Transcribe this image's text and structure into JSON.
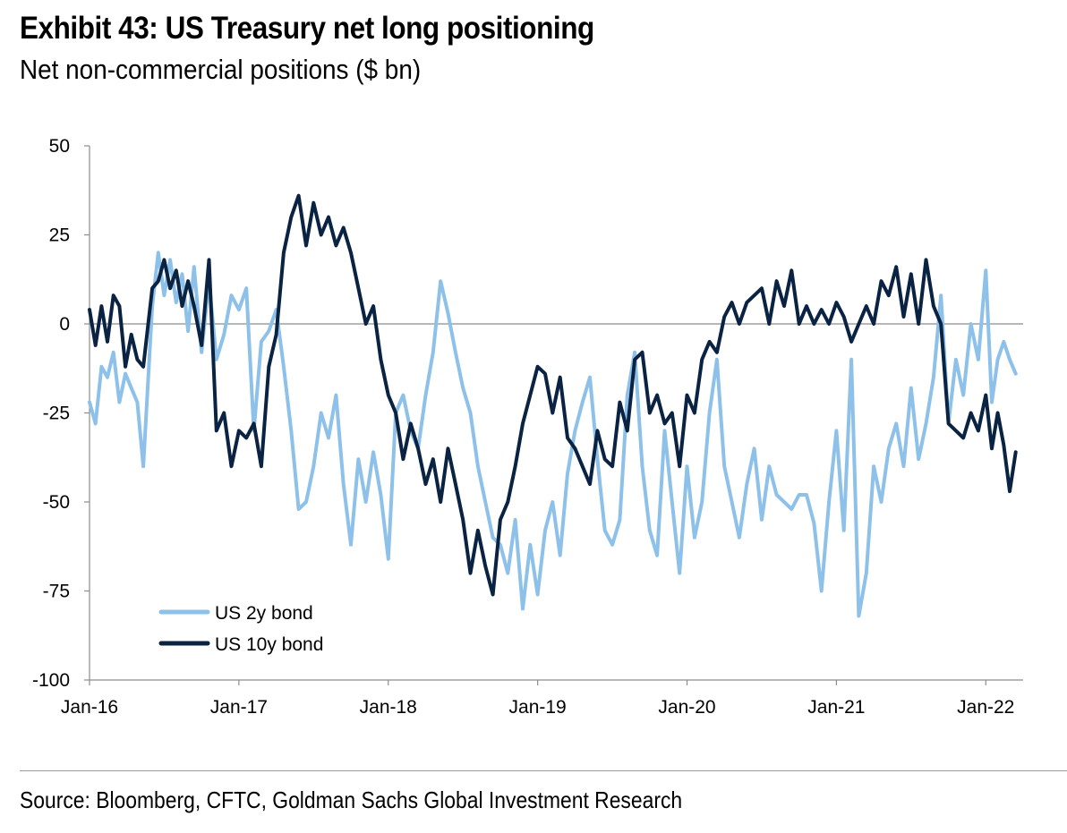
{
  "header": {
    "title": "Exhibit 43: US Treasury net long positioning",
    "subtitle": "Net non-commercial positions ($ bn)"
  },
  "footer": {
    "source": "Source: Bloomberg, CFTC, Goldman Sachs Global Investment Research"
  },
  "colors": {
    "us2y": "#8ec1e9",
    "us10y": "#0b2343",
    "axis": "#8c8c8c"
  },
  "chart_data": {
    "type": "line",
    "title": "Exhibit 43: US Treasury net long positioning",
    "ylabel": "Net non-commercial positions ($ bn)",
    "ylim": [
      -100,
      50
    ],
    "yticks": [
      50,
      25,
      0,
      -25,
      -50,
      -75,
      -100
    ],
    "ytick_labels": [
      "50",
      "25",
      "0",
      "-25",
      "-50",
      "-75",
      "-100"
    ],
    "xlim": [
      2016.0,
      2022.25
    ],
    "xticks": [
      2016,
      2017,
      2018,
      2019,
      2020,
      2021,
      2022
    ],
    "xtick_labels": [
      "Jan-16",
      "Jan-17",
      "Jan-18",
      "Jan-19",
      "Jan-20",
      "Jan-21",
      "Jan-22"
    ],
    "legend": {
      "position": "bottom-left"
    },
    "series": [
      {
        "name": "US 2y bond",
        "key": "us2y",
        "x": [
          2016.0,
          2016.04,
          2016.08,
          2016.12,
          2016.16,
          2016.2,
          2016.24,
          2016.28,
          2016.32,
          2016.36,
          2016.42,
          2016.46,
          2016.5,
          2016.54,
          2016.58,
          2016.62,
          2016.66,
          2016.7,
          2016.75,
          2016.8,
          2016.85,
          2016.9,
          2016.95,
          2017.0,
          2017.05,
          2017.1,
          2017.15,
          2017.2,
          2017.25,
          2017.3,
          2017.35,
          2017.4,
          2017.45,
          2017.5,
          2017.55,
          2017.6,
          2017.65,
          2017.7,
          2017.75,
          2017.8,
          2017.85,
          2017.9,
          2017.95,
          2018.0,
          2018.05,
          2018.1,
          2018.15,
          2018.2,
          2018.25,
          2018.3,
          2018.35,
          2018.4,
          2018.45,
          2018.5,
          2018.55,
          2018.6,
          2018.65,
          2018.7,
          2018.75,
          2018.8,
          2018.85,
          2018.9,
          2018.95,
          2019.0,
          2019.05,
          2019.1,
          2019.15,
          2019.2,
          2019.25,
          2019.3,
          2019.35,
          2019.4,
          2019.45,
          2019.5,
          2019.55,
          2019.6,
          2019.65,
          2019.7,
          2019.75,
          2019.8,
          2019.85,
          2019.9,
          2019.95,
          2020.0,
          2020.05,
          2020.1,
          2020.15,
          2020.2,
          2020.25,
          2020.3,
          2020.35,
          2020.4,
          2020.45,
          2020.5,
          2020.55,
          2020.6,
          2020.65,
          2020.7,
          2020.75,
          2020.8,
          2020.85,
          2020.9,
          2020.95,
          2021.0,
          2021.05,
          2021.1,
          2021.15,
          2021.2,
          2021.25,
          2021.3,
          2021.35,
          2021.4,
          2021.45,
          2021.5,
          2021.55,
          2021.6,
          2021.65,
          2021.7,
          2021.75,
          2021.8,
          2021.85,
          2021.9,
          2021.95,
          2022.0,
          2022.04,
          2022.08,
          2022.12,
          2022.16,
          2022.2
        ],
        "y": [
          -22,
          -28,
          -12,
          -15,
          -8,
          -22,
          -14,
          -18,
          -22,
          -40,
          5,
          20,
          8,
          18,
          6,
          14,
          -2,
          16,
          -8,
          12,
          -10,
          -3,
          8,
          4,
          10,
          -30,
          -5,
          -2,
          4,
          -12,
          -30,
          -52,
          -50,
          -40,
          -25,
          -32,
          -20,
          -45,
          -62,
          -38,
          -50,
          -36,
          -48,
          -66,
          -25,
          -20,
          -30,
          -35,
          -20,
          -8,
          12,
          3,
          -8,
          -18,
          -25,
          -40,
          -50,
          -60,
          -62,
          -70,
          -55,
          -80,
          -62,
          -76,
          -58,
          -50,
          -65,
          -42,
          -30,
          -22,
          -15,
          -38,
          -58,
          -62,
          -55,
          -20,
          -8,
          -40,
          -58,
          -65,
          -30,
          -50,
          -70,
          -40,
          -60,
          -50,
          -25,
          -10,
          -40,
          -50,
          -60,
          -45,
          -35,
          -55,
          -40,
          -48,
          -50,
          -52,
          -48,
          -48,
          -56,
          -75,
          -50,
          -30,
          -58,
          -10,
          -82,
          -70,
          -40,
          -50,
          -35,
          -28,
          -40,
          -18,
          -38,
          -28,
          -15,
          8,
          -28,
          -10,
          -20,
          0,
          -10,
          15,
          -22,
          -10,
          -5,
          -10,
          -14
        ],
        "color": "#8ec1e9"
      },
      {
        "name": "US 10y bond",
        "key": "us10y",
        "x": [
          2016.0,
          2016.04,
          2016.08,
          2016.12,
          2016.16,
          2016.2,
          2016.24,
          2016.28,
          2016.32,
          2016.36,
          2016.42,
          2016.46,
          2016.5,
          2016.54,
          2016.58,
          2016.62,
          2016.66,
          2016.7,
          2016.75,
          2016.8,
          2016.85,
          2016.9,
          2016.95,
          2017.0,
          2017.05,
          2017.1,
          2017.15,
          2017.2,
          2017.25,
          2017.3,
          2017.35,
          2017.4,
          2017.45,
          2017.5,
          2017.55,
          2017.6,
          2017.65,
          2017.7,
          2017.75,
          2017.8,
          2017.85,
          2017.9,
          2017.95,
          2018.0,
          2018.05,
          2018.1,
          2018.15,
          2018.2,
          2018.25,
          2018.3,
          2018.35,
          2018.4,
          2018.45,
          2018.5,
          2018.55,
          2018.6,
          2018.65,
          2018.7,
          2018.75,
          2018.8,
          2018.85,
          2018.9,
          2018.95,
          2019.0,
          2019.05,
          2019.1,
          2019.15,
          2019.2,
          2019.25,
          2019.3,
          2019.35,
          2019.4,
          2019.45,
          2019.5,
          2019.55,
          2019.6,
          2019.65,
          2019.7,
          2019.75,
          2019.8,
          2019.85,
          2019.9,
          2019.95,
          2020.0,
          2020.05,
          2020.1,
          2020.15,
          2020.2,
          2020.25,
          2020.3,
          2020.35,
          2020.4,
          2020.45,
          2020.5,
          2020.55,
          2020.6,
          2020.65,
          2020.7,
          2020.75,
          2020.8,
          2020.85,
          2020.9,
          2020.95,
          2021.0,
          2021.05,
          2021.1,
          2021.15,
          2021.2,
          2021.25,
          2021.3,
          2021.35,
          2021.4,
          2021.45,
          2021.5,
          2021.55,
          2021.6,
          2021.65,
          2021.7,
          2021.75,
          2021.8,
          2021.85,
          2021.9,
          2021.95,
          2022.0,
          2022.04,
          2022.08,
          2022.12,
          2022.16,
          2022.2
        ],
        "y": [
          4,
          -6,
          5,
          -5,
          8,
          5,
          -12,
          -3,
          -10,
          -12,
          10,
          12,
          18,
          10,
          15,
          5,
          12,
          5,
          -6,
          18,
          -30,
          -25,
          -40,
          -30,
          -32,
          -28,
          -40,
          -12,
          -3,
          20,
          30,
          36,
          22,
          34,
          25,
          30,
          22,
          27,
          20,
          10,
          0,
          5,
          -10,
          -20,
          -25,
          -38,
          -28,
          -35,
          -45,
          -38,
          -50,
          -35,
          -45,
          -55,
          -70,
          -58,
          -68,
          -76,
          -55,
          -50,
          -40,
          -28,
          -20,
          -12,
          -14,
          -25,
          -15,
          -32,
          -35,
          -40,
          -45,
          -30,
          -38,
          -40,
          -22,
          -30,
          -10,
          -8,
          -25,
          -20,
          -28,
          -25,
          -40,
          -20,
          -25,
          -10,
          -5,
          -8,
          2,
          6,
          0,
          6,
          8,
          10,
          0,
          12,
          5,
          15,
          0,
          5,
          0,
          4,
          0,
          6,
          2,
          -5,
          0,
          5,
          0,
          12,
          8,
          16,
          2,
          14,
          0,
          18,
          5,
          0,
          -28,
          -30,
          -32,
          -25,
          -30,
          -20,
          -35,
          -25,
          -34,
          -47,
          -36
        ],
        "color": "#0b2343"
      }
    ]
  }
}
